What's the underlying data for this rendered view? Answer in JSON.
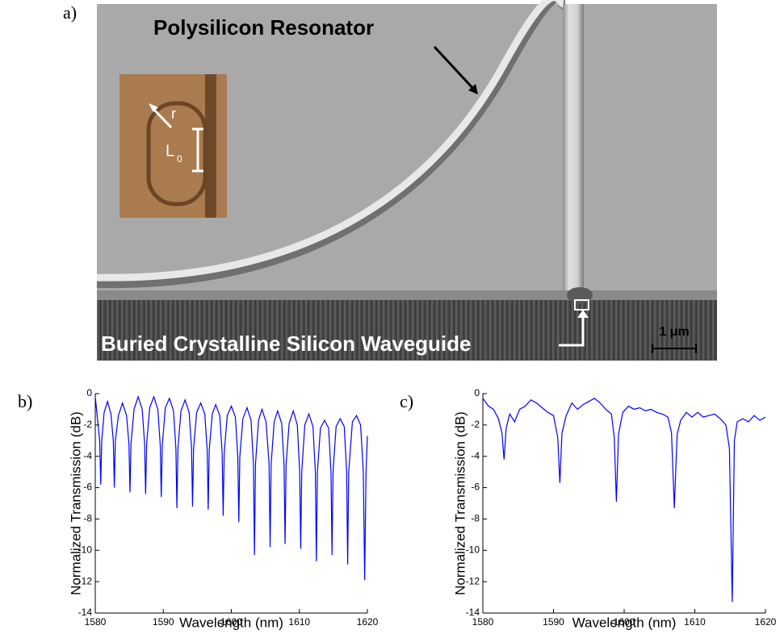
{
  "image": {
    "label": "a)",
    "title": "Polysilicon Resonator",
    "waveguide_label": "Buried Crystalline Silicon Waveguide",
    "scale_bar": "1 μm",
    "inset": {
      "radius_label": "r",
      "length_label": "L",
      "length_subscript": "0"
    }
  },
  "chart_data": [
    {
      "type": "line",
      "label": "b)",
      "xlabel": "Wavelength (nm)",
      "ylabel": "Normalized Transmission (dB)",
      "xlim": [
        1580,
        1620
      ],
      "xticks": [
        1580,
        1590,
        1600,
        1610,
        1620
      ],
      "ylim": [
        -14,
        0
      ],
      "yticks": [
        0,
        -2,
        -4,
        -6,
        -8,
        -10,
        -12,
        -14
      ],
      "x": [
        1580,
        1580.3,
        1580.65,
        1580.8,
        1580.95,
        1581.3,
        1581.8,
        1582.3,
        1582.65,
        1582.8,
        1582.95,
        1583.4,
        1584.0,
        1584.6,
        1584.95,
        1585.1,
        1585.25,
        1585.7,
        1586.3,
        1586.9,
        1587.25,
        1587.4,
        1587.55,
        1588.0,
        1588.6,
        1589.2,
        1589.55,
        1589.7,
        1589.85,
        1590.3,
        1590.9,
        1591.5,
        1591.85,
        1592.0,
        1592.15,
        1592.6,
        1593.2,
        1593.8,
        1594.15,
        1594.3,
        1594.45,
        1594.9,
        1595.5,
        1596.1,
        1596.45,
        1596.6,
        1596.75,
        1597.2,
        1597.7,
        1598.3,
        1598.65,
        1598.8,
        1598.95,
        1599.4,
        1600.0,
        1600.6,
        1600.95,
        1601.1,
        1601.25,
        1601.7,
        1602.3,
        1602.9,
        1603.25,
        1603.4,
        1603.55,
        1604.0,
        1604.5,
        1605.1,
        1605.55,
        1605.7,
        1605.85,
        1606.3,
        1606.8,
        1607.4,
        1607.75,
        1607.9,
        1608.05,
        1608.5,
        1609.1,
        1609.7,
        1610.05,
        1610.2,
        1610.35,
        1610.8,
        1611.4,
        1612.0,
        1612.35,
        1612.5,
        1612.65,
        1613.1,
        1613.7,
        1614.3,
        1614.65,
        1614.8,
        1614.95,
        1615.4,
        1616.0,
        1616.6,
        1616.95,
        1617.1,
        1617.25,
        1617.8,
        1618.4,
        1619.0,
        1619.4,
        1619.6,
        1619.8,
        1620.0
      ],
      "series": [
        {
          "color": "#0000ff",
          "values": [
            -0.2,
            -1.5,
            -3.0,
            -5.8,
            -3.0,
            -1.2,
            -0.5,
            -1.3,
            -3.0,
            -6.0,
            -3.0,
            -1.4,
            -0.6,
            -1.4,
            -3.2,
            -6.3,
            -3.2,
            -1.0,
            -0.2,
            -1.0,
            -3.2,
            -6.4,
            -3.2,
            -0.9,
            -0.2,
            -1.0,
            -3.3,
            -6.6,
            -3.3,
            -0.9,
            -0.3,
            -1.1,
            -3.5,
            -7.3,
            -3.5,
            -1.1,
            -0.4,
            -1.2,
            -3.5,
            -7.2,
            -3.5,
            -1.2,
            -0.6,
            -1.3,
            -3.6,
            -7.4,
            -3.6,
            -1.3,
            -0.7,
            -1.4,
            -3.8,
            -7.8,
            -3.8,
            -1.4,
            -0.8,
            -1.5,
            -4.0,
            -8.2,
            -4.0,
            -1.6,
            -0.9,
            -1.7,
            -4.5,
            -10.3,
            -4.5,
            -1.7,
            -1.0,
            -1.8,
            -4.5,
            -9.8,
            -4.5,
            -1.8,
            -1.1,
            -1.9,
            -4.5,
            -9.6,
            -4.5,
            -1.9,
            -1.1,
            -2.0,
            -5.0,
            -9.9,
            -5.0,
            -2.0,
            -1.3,
            -2.1,
            -5.0,
            -10.7,
            -5.0,
            -2.2,
            -1.7,
            -2.2,
            -5.0,
            -10.3,
            -5.0,
            -2.1,
            -1.6,
            -2.1,
            -5.0,
            -10.9,
            -5.0,
            -1.8,
            -1.4,
            -2.0,
            -5.0,
            -11.9,
            -5.0,
            -2.7
          ]
        }
      ]
    },
    {
      "type": "line",
      "label": "c)",
      "xlabel": "Wavelength (nm)",
      "ylabel": "Normalized Transmission (dB)",
      "xlim": [
        1580,
        1620
      ],
      "xticks": [
        1580,
        1590,
        1600,
        1610,
        1620
      ],
      "ylim": [
        -14,
        0
      ],
      "yticks": [
        0,
        -2,
        -4,
        -6,
        -8,
        -10,
        -12,
        -14
      ],
      "x": [
        1580,
        1580.8,
        1581.5,
        1582.2,
        1582.7,
        1583.0,
        1583.3,
        1583.8,
        1584.5,
        1585.2,
        1586.0,
        1586.8,
        1587.6,
        1588.4,
        1589.2,
        1590.0,
        1590.6,
        1590.9,
        1591.2,
        1591.8,
        1592.6,
        1593.4,
        1594.2,
        1595.0,
        1595.8,
        1596.6,
        1597.4,
        1598.2,
        1598.6,
        1598.9,
        1599.2,
        1599.8,
        1600.6,
        1601.4,
        1602.2,
        1603.0,
        1603.8,
        1604.6,
        1605.4,
        1606.2,
        1606.7,
        1607.1,
        1607.5,
        1608.0,
        1608.8,
        1609.6,
        1610.4,
        1611.2,
        1612.0,
        1612.8,
        1613.6,
        1614.4,
        1614.9,
        1615.3,
        1615.6,
        1616.0,
        1616.8,
        1617.6,
        1618.4,
        1619.2,
        1620.0
      ],
      "series": [
        {
          "color": "#0000ff",
          "values": [
            -0.3,
            -0.8,
            -1.0,
            -1.6,
            -2.5,
            -4.2,
            -2.2,
            -1.3,
            -1.8,
            -1.0,
            -0.8,
            -0.4,
            -0.6,
            -0.9,
            -1.2,
            -1.4,
            -2.8,
            -5.7,
            -2.5,
            -1.4,
            -0.6,
            -1.0,
            -0.7,
            -0.5,
            -0.3,
            -0.6,
            -1.0,
            -1.3,
            -2.8,
            -6.9,
            -2.6,
            -1.2,
            -0.8,
            -1.0,
            -0.9,
            -1.1,
            -1.0,
            -1.2,
            -1.3,
            -1.5,
            -2.5,
            -7.3,
            -2.6,
            -1.7,
            -1.2,
            -1.5,
            -1.2,
            -1.5,
            -1.4,
            -1.3,
            -1.6,
            -2.0,
            -3.5,
            -13.3,
            -3.0,
            -1.8,
            -1.6,
            -1.8,
            -1.4,
            -1.7,
            -1.5
          ]
        }
      ]
    }
  ]
}
